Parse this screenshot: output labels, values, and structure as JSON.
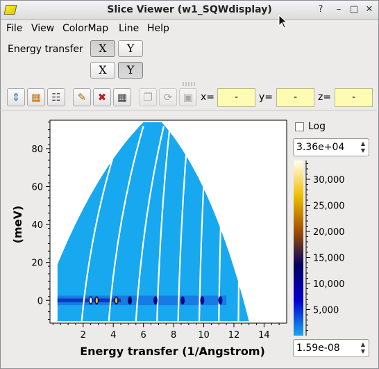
{
  "window": {
    "title": "Slice Viewer (w1_SQWdisplay)",
    "buttons": [
      "?",
      "–",
      "□",
      "✕"
    ]
  },
  "menu": [
    "File",
    "View",
    "ColorMap",
    "Line",
    "Help"
  ],
  "dimension": {
    "label": "Energy transfer",
    "row1": {
      "x": "X",
      "y": "Y",
      "pressed": "X"
    },
    "row2": {
      "x": "X",
      "y": "Y",
      "pressed": "Y"
    }
  },
  "toolbar": {
    "icons": [
      "zoom-fit-icon",
      "rebin-icon",
      "peaks-icon",
      "line-pencil-icon",
      "clear-line-icon",
      "grid-icon",
      "copy-icon",
      "refresh-icon",
      "lock-icon"
    ],
    "x_label": "x=",
    "x_value": "-",
    "y_label": "y=",
    "y_value": "-",
    "z_label": "z=",
    "z_value": "-"
  },
  "colorbar": {
    "log_label": "Log",
    "log_checked": false,
    "max_value": "3.36e+04",
    "min_value": "1.59e-08",
    "ticks": [
      "30,000",
      "25,000",
      "20,000",
      "15,000",
      "10,000",
      "5,000"
    ],
    "tick_values": [
      30000,
      25000,
      20000,
      15000,
      10000,
      5000
    ],
    "range": [
      0,
      33600
    ]
  },
  "chart_data": {
    "type": "heatmap",
    "xlabel": "Energy transfer (1/Angstrom)",
    "ylabel": "(meV)",
    "xlim": [
      -0.2,
      15.5
    ],
    "ylim": [
      -12,
      95
    ],
    "xticks": [
      2,
      4,
      6,
      8,
      10,
      12,
      14
    ],
    "yticks": [
      0,
      20,
      40,
      60,
      80
    ],
    "coverage": {
      "x_left_edge": 0.3,
      "x_right_edge": 13.0,
      "x_apex_left": 6.0,
      "x_apex_right": 7.2,
      "y_top": 94,
      "y_bottom": -11
    },
    "gap_lines_x_at_bottom": [
      1.9,
      3.7,
      5.5,
      6.9,
      8.3,
      9.7,
      11.0,
      12.3
    ],
    "elastic_peaks": [
      {
        "x": 2.5,
        "y": 0,
        "intensity": 33000
      },
      {
        "x": 2.9,
        "y": 0,
        "intensity": 28000
      },
      {
        "x": 4.2,
        "y": 0,
        "intensity": 26000
      },
      {
        "x": 5.1,
        "y": 0,
        "intensity": 12000
      },
      {
        "x": 6.8,
        "y": 0,
        "intensity": 9000
      },
      {
        "x": 8.6,
        "y": 0,
        "intensity": 7000
      },
      {
        "x": 9.9,
        "y": 0,
        "intensity": 5000
      },
      {
        "x": 11.1,
        "y": 0,
        "intensity": 4000
      }
    ],
    "colormap": [
      "#18a8f0",
      "#0000d0",
      "#000060",
      "#a05000",
      "#f0c000",
      "#fffff0"
    ]
  }
}
